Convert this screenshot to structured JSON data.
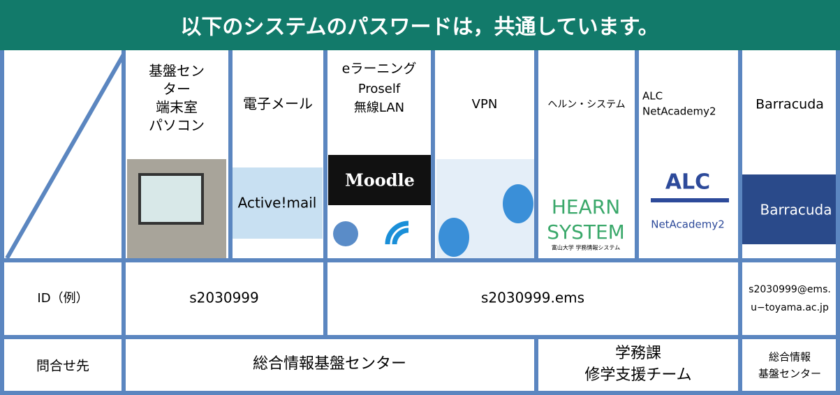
{
  "header": {
    "title": "以下のシステムのパスワードは，共通しています。"
  },
  "table": {
    "columns": [
      [
        "基盤セン",
        "ター",
        "端末室",
        "パソコン"
      ],
      [
        "電子メール"
      ],
      [
        "eラーニング",
        "Proself",
        "無線LAN"
      ],
      [
        "VPN"
      ],
      [
        "ヘルン・システム"
      ],
      [
        "ALC",
        "NetAcademy2"
      ],
      [
        "Barracuda"
      ]
    ],
    "logos": {
      "mail": "Active!mail",
      "moodle": "Moodle",
      "hearn": [
        "HEARN",
        "SYSTEM"
      ],
      "hearn_sub": "富山大学 学務情報システム",
      "alc": "ALC",
      "alc_sub": "NetAcademy2",
      "barracuda": "Barracuda"
    },
    "rows": [
      {
        "label": "ID（例）",
        "cells": [
          "s2030999",
          "s2030999.ems",
          [
            "s2030999@ems.",
            "u−toyama.ac.jp"
          ]
        ]
      },
      {
        "label": "問合せ先",
        "cells": [
          "総合情報基盤センター",
          [
            "学務課",
            "修学支援チーム"
          ],
          [
            "総合情報",
            "基盤センター"
          ]
        ]
      }
    ]
  }
}
